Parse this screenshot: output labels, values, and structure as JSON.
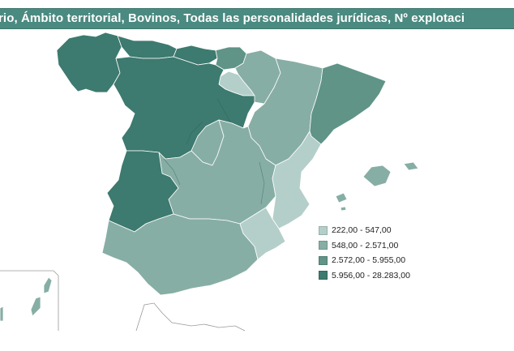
{
  "title": "rio, Ámbito territorial, Bovinos, Todas las personalidades jurídicas, Nº explotaci",
  "legend": {
    "items": [
      {
        "label": "222,00 - 547,00",
        "color": "#b4cfc9"
      },
      {
        "label": "548,00 - 2.571,00",
        "color": "#87aea5"
      },
      {
        "label": "2.572,00 - 5.955,00",
        "color": "#5f9487"
      },
      {
        "label": "5.956,00 - 28.283,00",
        "color": "#3d7a6f"
      }
    ]
  },
  "regions": [
    {
      "name": "Galicia",
      "class": 3
    },
    {
      "name": "Asturias",
      "class": 3
    },
    {
      "name": "Cantabria",
      "class": 3
    },
    {
      "name": "País Vasco",
      "class": 2
    },
    {
      "name": "Navarra",
      "class": 1
    },
    {
      "name": "La Rioja",
      "class": 0
    },
    {
      "name": "Aragón",
      "class": 1
    },
    {
      "name": "Cataluña",
      "class": 2
    },
    {
      "name": "Castilla y León",
      "class": 3
    },
    {
      "name": "Madrid",
      "class": 1
    },
    {
      "name": "Castilla-La Mancha",
      "class": 1
    },
    {
      "name": "Comunidad Valenciana",
      "class": 0
    },
    {
      "name": "Extremadura",
      "class": 3
    },
    {
      "name": "Andalucía",
      "class": 1
    },
    {
      "name": "Murcia",
      "class": 0
    },
    {
      "name": "Illes Balears",
      "class": 1
    },
    {
      "name": "Canarias",
      "class": 1
    }
  ]
}
